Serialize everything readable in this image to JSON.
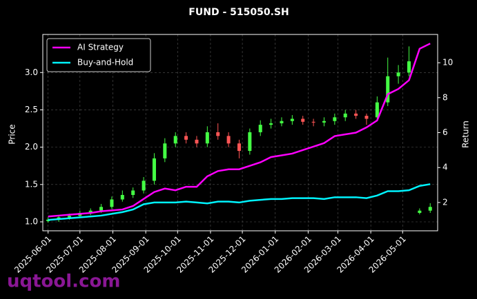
{
  "chart_data": {
    "type": "candlestick",
    "title": "FUND - 515050.SH",
    "ylabel": "Price",
    "y2label": "Return",
    "watermark": "uqtool.com",
    "x": [
      "2025-06-01",
      "2025-06-11",
      "2025-06-21",
      "2025-07-01",
      "2025-07-11",
      "2025-07-21",
      "2025-07-31",
      "2025-08-10",
      "2025-08-20",
      "2025-08-30",
      "2025-09-09",
      "2025-09-19",
      "2025-09-29",
      "2025-10-09",
      "2025-10-19",
      "2025-10-29",
      "2025-11-08",
      "2025-11-18",
      "2025-11-28",
      "2025-12-08",
      "2025-12-18",
      "2025-12-28",
      "2026-01-07",
      "2026-01-17",
      "2026-01-27",
      "2026-02-06",
      "2026-02-16",
      "2026-02-26",
      "2026-03-08",
      "2026-03-18",
      "2026-03-28",
      "2026-04-07",
      "2026-04-17",
      "2026-04-27",
      "2026-05-07",
      "2026-05-17",
      "2026-05-27"
    ],
    "open": [
      1.01,
      1.03,
      1.06,
      1.08,
      1.12,
      1.15,
      1.2,
      1.3,
      1.36,
      1.42,
      1.55,
      1.85,
      2.05,
      2.15,
      2.1,
      2.05,
      2.2,
      2.15,
      2.05,
      1.95,
      2.2,
      2.3,
      2.32,
      2.35,
      2.38,
      2.34,
      2.33,
      2.35,
      2.4,
      2.45,
      2.42,
      2.4,
      2.6,
      2.95,
      3.0,
      1.12,
      1.15
    ],
    "high": [
      1.06,
      1.09,
      1.11,
      1.15,
      1.18,
      1.24,
      1.34,
      1.42,
      1.46,
      1.6,
      1.92,
      2.12,
      2.2,
      2.2,
      2.15,
      2.28,
      2.32,
      2.2,
      2.1,
      2.25,
      2.36,
      2.38,
      2.4,
      2.43,
      2.42,
      2.38,
      2.4,
      2.45,
      2.5,
      2.5,
      2.45,
      2.68,
      3.2,
      3.1,
      3.35,
      1.18,
      1.25
    ],
    "low": [
      0.99,
      1.0,
      1.03,
      1.05,
      1.09,
      1.12,
      1.17,
      1.27,
      1.32,
      1.38,
      1.5,
      1.8,
      2.0,
      2.05,
      2.0,
      2.0,
      2.1,
      2.0,
      1.85,
      1.9,
      2.15,
      2.25,
      2.28,
      2.3,
      2.3,
      2.28,
      2.28,
      2.3,
      2.35,
      2.38,
      2.3,
      2.35,
      2.55,
      2.85,
      2.95,
      1.1,
      1.12
    ],
    "close": [
      1.03,
      1.06,
      1.08,
      1.12,
      1.15,
      1.2,
      1.3,
      1.36,
      1.42,
      1.55,
      1.85,
      2.05,
      2.15,
      2.1,
      2.05,
      2.2,
      2.15,
      2.05,
      1.95,
      2.2,
      2.3,
      2.32,
      2.35,
      2.38,
      2.34,
      2.33,
      2.35,
      2.4,
      2.45,
      2.42,
      2.38,
      2.6,
      2.95,
      3.0,
      3.15,
      1.15,
      1.2
    ],
    "up_color": "#44ff44",
    "down_color": "#ff5555",
    "series": [
      {
        "name": "AI Strategy",
        "color": "#ff00ff",
        "axis": "y2",
        "values": [
          1.2,
          1.25,
          1.3,
          1.35,
          1.4,
          1.5,
          1.55,
          1.6,
          1.8,
          2.2,
          2.6,
          2.8,
          2.7,
          2.9,
          2.9,
          3.5,
          3.8,
          3.9,
          3.9,
          4.1,
          4.3,
          4.6,
          4.7,
          4.8,
          5.0,
          5.2,
          5.4,
          5.8,
          5.9,
          6.0,
          6.3,
          6.7,
          8.2,
          8.5,
          9.0,
          10.8,
          11.1
        ]
      },
      {
        "name": "Buy-and-Hold",
        "color": "#00f5ff",
        "axis": "y2",
        "values": [
          1.0,
          1.05,
          1.1,
          1.15,
          1.2,
          1.25,
          1.35,
          1.45,
          1.6,
          1.9,
          2.0,
          2.0,
          2.0,
          2.05,
          2.0,
          1.95,
          2.05,
          2.05,
          2.0,
          2.1,
          2.15,
          2.2,
          2.2,
          2.25,
          2.25,
          2.25,
          2.2,
          2.3,
          2.3,
          2.3,
          2.25,
          2.4,
          2.65,
          2.65,
          2.7,
          2.95,
          3.05
        ]
      }
    ],
    "xlim": [
      "2025-05-27",
      "2026-06-03"
    ],
    "xticks": [
      "2025-06-01",
      "2025-07-01",
      "2025-08-01",
      "2025-09-01",
      "2025-10-01",
      "2025-11-01",
      "2025-12-01",
      "2026-01-01",
      "2026-02-01",
      "2026-03-01",
      "2026-04-01",
      "2026-05-01"
    ],
    "ylim": [
      0.88,
      3.51
    ],
    "yticks": [
      {
        "value": 1,
        "label": "1.0"
      },
      1.5,
      {
        "value": 2,
        "label": "2.0"
      },
      2.5,
      {
        "value": 3,
        "label": "3.0"
      }
    ],
    "y2lim": [
      0.38,
      11.62
    ],
    "y2ticks": [
      2,
      4,
      6,
      8,
      10
    ],
    "grid": true,
    "legend": "upper-left"
  }
}
